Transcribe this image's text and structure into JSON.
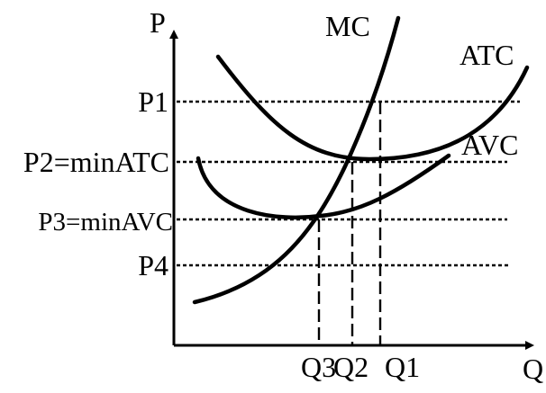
{
  "axes": {
    "y_label": "P",
    "x_label": "Q"
  },
  "curves": {
    "mc": "MC",
    "atc": "ATC",
    "avc": "AVC"
  },
  "price_levels": [
    "P1",
    "P2=minATC",
    "P3=minAVC",
    "P4"
  ],
  "quantities": [
    "Q3",
    "Q2",
    "Q1"
  ]
}
